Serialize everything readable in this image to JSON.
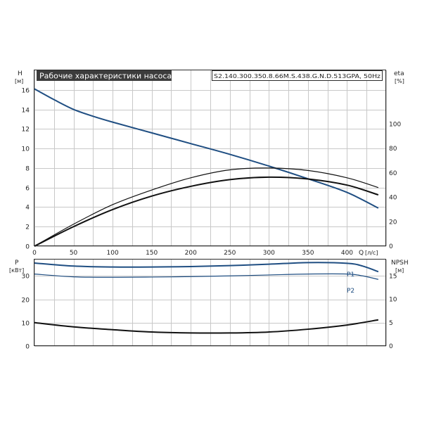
{
  "title": "Рабочие характеристики насоса",
  "model": "S2.140.300.350.8.66M.S.438.G.N.D.513GPA, 50Hz",
  "colors": {
    "blue": "#1f4e82",
    "black": "#111111",
    "title_bg": "#3c3c3c",
    "grid": "#c8c8c8"
  },
  "chart_data": [
    {
      "type": "line",
      "panel": "head-efficiency",
      "x_label": "Q",
      "x_unit": "[л/с]",
      "xlim": [
        0,
        450
      ],
      "x_ticks": [
        "0",
        "50",
        "100",
        "150",
        "200",
        "250",
        "300",
        "350",
        "400"
      ],
      "left_axis": {
        "label": "H",
        "unit": "[м]",
        "ylim": [
          0,
          18
        ],
        "ticks": [
          "0",
          "2",
          "4",
          "6",
          "8",
          "10",
          "12",
          "14",
          "16"
        ]
      },
      "right_axis": {
        "label": "eta",
        "unit": "[%]",
        "ylim": [
          0,
          144
        ],
        "ticks": [
          "0",
          "20",
          "40",
          "60",
          "80",
          "100"
        ]
      },
      "grid": true,
      "series": [
        {
          "key": "H",
          "axis": "left",
          "color": "#1f4e82",
          "width": 2,
          "x": [
            0,
            25,
            50,
            75,
            100,
            150,
            200,
            250,
            300,
            350,
            400,
            440
          ],
          "y": [
            16.1,
            15.0,
            14.0,
            13.3,
            12.7,
            11.6,
            10.5,
            9.4,
            8.2,
            6.9,
            5.5,
            3.9
          ]
        },
        {
          "key": "eta1",
          "axis": "right",
          "color": "#111111",
          "width": 1.2,
          "x": [
            0,
            50,
            100,
            150,
            200,
            250,
            300,
            350,
            400,
            440
          ],
          "y": [
            0,
            18,
            34,
            46,
            56,
            62.5,
            64,
            62,
            56,
            48
          ]
        },
        {
          "key": "eta2",
          "axis": "right",
          "color": "#111111",
          "width": 2,
          "x": [
            0,
            50,
            100,
            150,
            200,
            250,
            300,
            350,
            400,
            440
          ],
          "y": [
            0,
            16,
            30,
            41,
            49,
            54.5,
            56.5,
            55,
            50,
            42
          ]
        }
      ]
    },
    {
      "type": "line",
      "panel": "power-npsh",
      "xlim": [
        0,
        450
      ],
      "left_axis": {
        "label": "P",
        "unit": "[кВт]",
        "ylim": [
          0,
          37
        ],
        "ticks": [
          "0",
          "10",
          "20",
          "30"
        ]
      },
      "right_axis": {
        "label": "NPSH",
        "unit": "[м]",
        "ylim": [
          0,
          18.5
        ],
        "ticks": [
          "0",
          "5",
          "10",
          "15"
        ]
      },
      "grid": true,
      "series": [
        {
          "name": "P1",
          "axis": "left",
          "color": "#1f4e82",
          "width": 2,
          "x": [
            0,
            50,
            100,
            150,
            200,
            250,
            300,
            350,
            400,
            420,
            440
          ],
          "y": [
            35.5,
            34.2,
            33.8,
            33.8,
            34.0,
            34.4,
            35.0,
            35.7,
            35.4,
            34.2,
            31.8
          ]
        },
        {
          "name": "P2",
          "axis": "left",
          "color": "#1f4e82",
          "width": 1.2,
          "x": [
            0,
            50,
            100,
            150,
            200,
            250,
            300,
            350,
            400,
            420,
            440
          ],
          "y": [
            30.8,
            29.6,
            29.4,
            29.5,
            29.7,
            30.0,
            30.4,
            30.8,
            30.8,
            30.0,
            28.5
          ]
        },
        {
          "key": "NPSH",
          "axis": "right",
          "color": "#111111",
          "width": 2,
          "x": [
            0,
            50,
            100,
            150,
            200,
            250,
            300,
            350,
            400,
            440
          ],
          "y": [
            5.0,
            4.1,
            3.5,
            3.0,
            2.8,
            2.8,
            3.0,
            3.6,
            4.5,
            5.6
          ]
        }
      ]
    }
  ]
}
